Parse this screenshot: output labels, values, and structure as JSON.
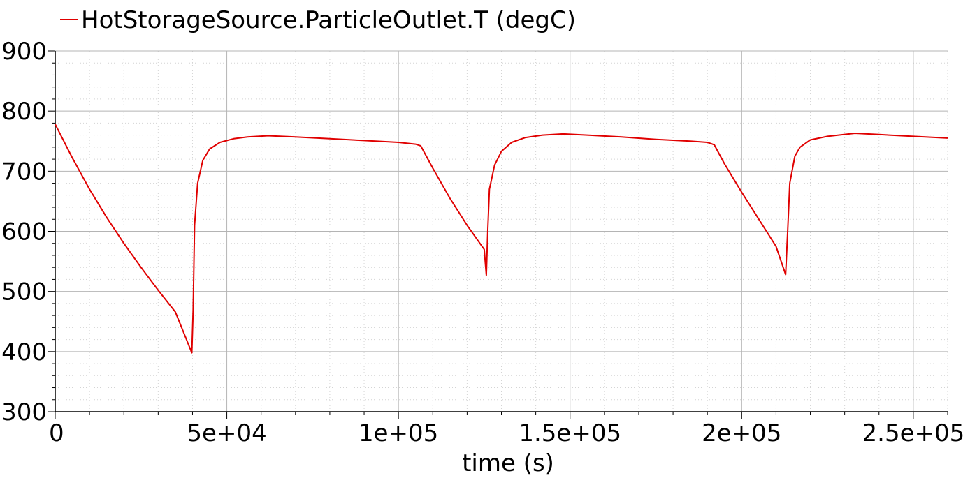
{
  "chart_data": {
    "type": "line",
    "title": "",
    "xlabel": "time (s)",
    "ylabel": "",
    "xlim": [
      0,
      260000
    ],
    "ylim": [
      300,
      900
    ],
    "grid": true,
    "legend_position": "top-left",
    "x_ticks": [
      0,
      50000,
      100000,
      150000,
      200000,
      250000
    ],
    "x_tick_labels": [
      "0",
      "5e+04",
      "1e+05",
      "1.5e+05",
      "2e+05",
      "2.5e+05"
    ],
    "y_ticks": [
      300,
      400,
      500,
      600,
      700,
      800,
      900
    ],
    "y_tick_labels": [
      "300",
      "400",
      "500",
      "600",
      "700",
      "800",
      "900"
    ],
    "series": [
      {
        "name": "HotStorageSource.ParticleOutlet.T (degC)",
        "color": "#e00000",
        "x": [
          0,
          5000,
          10000,
          15000,
          20000,
          25000,
          30000,
          35000,
          39800,
          40200,
          40600,
          41500,
          43000,
          45000,
          48000,
          52000,
          56000,
          62000,
          70000,
          80000,
          90000,
          100000,
          105000,
          106500,
          110000,
          115000,
          120000,
          125000,
          125600,
          126000,
          126500,
          128000,
          130000,
          133000,
          137000,
          142000,
          148000,
          155000,
          165000,
          175000,
          185000,
          190000,
          192000,
          195000,
          200000,
          205000,
          210000,
          212800,
          213400,
          214000,
          215500,
          217000,
          220000,
          225000,
          233000,
          240000,
          250000,
          260000
        ],
        "y": [
          778,
          722,
          670,
          623,
          580,
          540,
          502,
          466,
          398,
          470,
          610,
          680,
          718,
          737,
          748,
          754,
          757,
          759,
          757,
          754,
          751,
          748,
          745,
          742,
          705,
          655,
          610,
          570,
          527,
          600,
          670,
          710,
          733,
          748,
          756,
          760,
          762,
          760,
          757,
          753,
          750,
          748,
          744,
          712,
          665,
          620,
          575,
          528,
          600,
          680,
          725,
          740,
          752,
          758,
          763,
          761,
          758,
          755
        ]
      }
    ]
  }
}
